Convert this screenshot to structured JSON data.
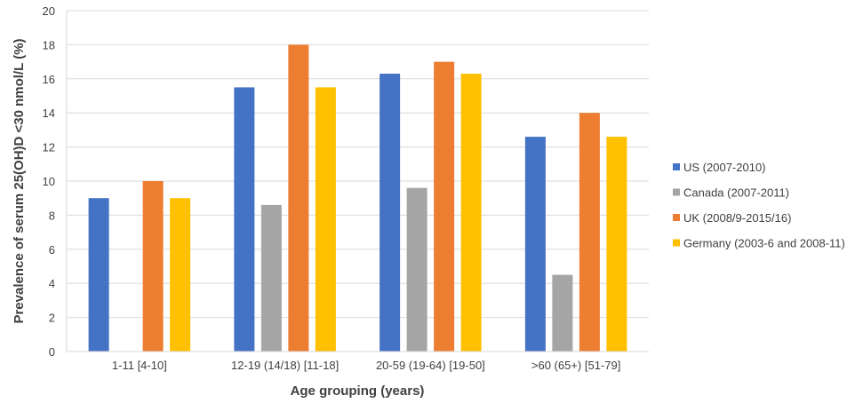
{
  "chart_data": {
    "type": "bar",
    "title": "",
    "xlabel": "Age grouping (years)",
    "ylabel": "Prevalence of serum 25(OH)D <30 nmol/L (%)",
    "ylim": [
      0,
      20
    ],
    "yticks": [
      "0",
      "2",
      "4",
      "6",
      "8",
      "10",
      "12",
      "14",
      "16",
      "18",
      "20"
    ],
    "grid": true,
    "legend_position": "right",
    "categories": [
      "1-11 [4-10]",
      "12-19 (14/18) [11-18]",
      "20-59 (19-64) [19-50]",
      ">60 (65+) [51-79]"
    ],
    "series": [
      {
        "name": "US (2007-2010)",
        "color": "#4472C4",
        "values": [
          9.0,
          15.5,
          16.3,
          12.6
        ]
      },
      {
        "name": "Canada (2007-2011)",
        "color": "#A5A5A5",
        "values": [
          null,
          8.6,
          9.6,
          4.5
        ]
      },
      {
        "name": "UK (2008/9-2015/16)",
        "color": "#ED7D31",
        "values": [
          10.0,
          18.0,
          17.0,
          14.0
        ]
      },
      {
        "name": "Germany (2003-6 and 2008-11)",
        "color": "#FFC000",
        "values": [
          9.0,
          15.5,
          16.3,
          12.6
        ]
      }
    ]
  }
}
